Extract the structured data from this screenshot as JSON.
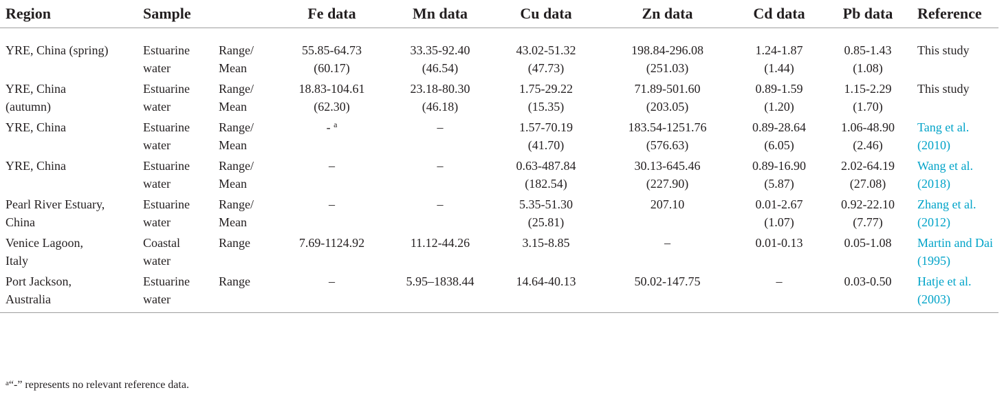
{
  "headers": {
    "region": "Region",
    "sample": "Sample",
    "stat": "",
    "fe": "Fe data",
    "mn": "Mn data",
    "cu": "Cu data",
    "zn": "Zn data",
    "cd": "Cd data",
    "pb": "Pb data",
    "reference": "Reference"
  },
  "rows": [
    {
      "region": [
        "YRE, China (spring)"
      ],
      "sample": [
        "Estuarine",
        "water"
      ],
      "stat": [
        "Range/",
        "Mean"
      ],
      "fe": [
        "55.85-64.73",
        "(60.17)"
      ],
      "mn": [
        "33.35-92.40",
        "(46.54)"
      ],
      "cu": [
        "43.02-51.32",
        "(47.73)"
      ],
      "zn": [
        "198.84-296.08",
        "(251.03)"
      ],
      "cd": [
        "1.24-1.87",
        "(1.44)"
      ],
      "pb": [
        "0.85-1.43",
        "(1.08)"
      ],
      "reference": [
        "This study"
      ],
      "ref_link": false
    },
    {
      "region": [
        "YRE, China",
        "(autumn)"
      ],
      "sample": [
        "Estuarine",
        "water"
      ],
      "stat": [
        "Range/",
        "Mean"
      ],
      "fe": [
        "18.83-104.61",
        "(62.30)"
      ],
      "mn": [
        "23.18-80.30",
        "(46.18)"
      ],
      "cu": [
        "1.75-29.22",
        "(15.35)"
      ],
      "zn": [
        "71.89-501.60",
        "(203.05)"
      ],
      "cd": [
        "0.89-1.59",
        "(1.20)"
      ],
      "pb": [
        "1.15-2.29",
        "(1.70)"
      ],
      "reference": [
        "This study"
      ],
      "ref_link": false
    },
    {
      "region": [
        "YRE, China"
      ],
      "sample": [
        "Estuarine",
        "water"
      ],
      "stat": [
        "Range/",
        "Mean"
      ],
      "fe": [
        "- "
      ],
      "fe_sup": "a",
      "mn": [
        "–"
      ],
      "cu": [
        "1.57-70.19",
        "(41.70)"
      ],
      "zn": [
        "183.54-1251.76",
        "(576.63)"
      ],
      "cd": [
        "0.89-28.64",
        "(6.05)"
      ],
      "pb": [
        "1.06-48.90",
        "(2.46)"
      ],
      "reference": [
        "Tang et al.",
        "(2010)"
      ],
      "ref_link": true
    },
    {
      "region": [
        "YRE, China"
      ],
      "sample": [
        "Estuarine",
        "water"
      ],
      "stat": [
        "Range/",
        "Mean"
      ],
      "fe": [
        "–"
      ],
      "mn": [
        "–"
      ],
      "cu": [
        "0.63-487.84",
        "(182.54)"
      ],
      "zn": [
        "30.13-645.46",
        "(227.90)"
      ],
      "cd": [
        "0.89-16.90",
        "(5.87)"
      ],
      "pb": [
        "2.02-64.19",
        "(27.08)"
      ],
      "reference": [
        "Wang et al.",
        "(2018)"
      ],
      "ref_link": true
    },
    {
      "region": [
        "Pearl River Estuary,",
        "China"
      ],
      "sample": [
        "Estuarine",
        "water"
      ],
      "stat": [
        "Range/",
        "Mean"
      ],
      "fe": [
        "–"
      ],
      "mn": [
        "–"
      ],
      "cu": [
        "5.35-51.30",
        "(25.81)"
      ],
      "zn": [
        "207.10"
      ],
      "cd": [
        "0.01-2.67",
        "(1.07)"
      ],
      "pb": [
        "0.92-22.10",
        "(7.77)"
      ],
      "reference": [
        "Zhang et al.",
        "(2012)"
      ],
      "ref_link": true
    },
    {
      "region": [
        "Venice Lagoon,",
        "Italy"
      ],
      "sample": [
        "Coastal",
        "water"
      ],
      "stat": [
        "Range"
      ],
      "fe": [
        "7.69-1124.92"
      ],
      "mn": [
        "11.12-44.26"
      ],
      "cu": [
        "3.15-8.85"
      ],
      "zn": [
        "–"
      ],
      "cd": [
        "0.01-0.13"
      ],
      "pb": [
        "0.05-1.08"
      ],
      "reference": [
        "Martin and Dai",
        "(1995)"
      ],
      "ref_link": true
    },
    {
      "region": [
        "Port Jackson,",
        "Australia"
      ],
      "sample": [
        "Estuarine",
        "water"
      ],
      "stat": [
        "Range"
      ],
      "fe": [
        "–"
      ],
      "mn": [
        "5.95–1838.44"
      ],
      "cu": [
        "14.64-40.13"
      ],
      "zn": [
        "50.02-147.75"
      ],
      "cd": [
        "–"
      ],
      "pb": [
        "0.03-0.50"
      ],
      "reference": [
        "Hatje et al.",
        "(2003)"
      ],
      "ref_link": true
    }
  ],
  "footnote": {
    "marker": "a",
    "text": "“-” represents no relevant reference data."
  },
  "colors": {
    "text": "#231f20",
    "link": "#00a3c8",
    "rule": "#9e9e9e"
  }
}
